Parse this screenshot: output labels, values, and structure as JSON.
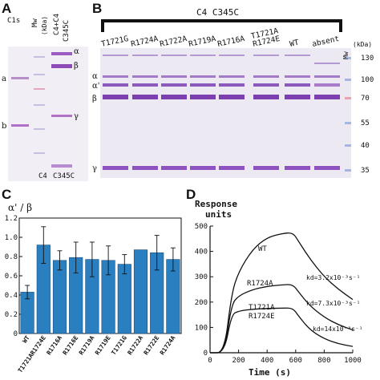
{
  "panel_a": {
    "letter": "A",
    "top_labels": [
      "C1s",
      "Mw (kDa)",
      "C4+C4 C345C"
    ],
    "lane_label_c1s": "C1s",
    "lane_label_mw": "Mw",
    "lane_label_kda": "(kDa)",
    "lane_label_c4c4": "C4+C4",
    "lane_label_c345c": "C345C",
    "band_a": "a",
    "band_b": "b",
    "band_alpha": "α",
    "band_beta": "β",
    "band_gamma": "γ",
    "bottom_c4": "C4",
    "bottom_c345c": "C345C"
  },
  "panel_b": {
    "letter": "B",
    "header": "C4 C345C",
    "lanes": [
      "T1721G",
      "R1724A",
      "R1722A",
      "R1719A",
      "R1716A",
      "T1721A R1724E",
      "WT",
      "absent"
    ],
    "mw_label": "Mw",
    "kda_label": "(kDa)",
    "band_alpha": "α",
    "band_alpha_prime": "α'",
    "band_beta": "β",
    "band_gamma": "γ",
    "markers": [
      "130",
      "100",
      "70",
      "55",
      "40",
      "35"
    ]
  },
  "panel_c": {
    "letter": "C",
    "ylabel": "α' / β"
  },
  "panel_d": {
    "letter": "D",
    "ylabel_line1": "Response",
    "ylabel_line2": "units",
    "xlabel": "Time (s)",
    "curve_wt": "WT",
    "curve_r1724a": "R1724A",
    "curve_t1721a_1": "T1721A",
    "curve_t1721a_2": "R1724E",
    "kd_wt": "kd=3.2x10⁻³s⁻¹",
    "kd_r1724a": "kd=7.3x10⁻³s⁻¹",
    "kd_t1721a": "kd=14x10⁻³s⁻¹"
  },
  "chart_data": [
    {
      "type": "bar",
      "panel": "C",
      "title": "",
      "ylabel": "α' / β",
      "xlabel": "",
      "categories": [
        "WT",
        "T1721A R1724E",
        "R1716A",
        "R1716E",
        "R1719A",
        "R1719E",
        "T1721G",
        "R1722A",
        "R1722E",
        "R1724A"
      ],
      "values": [
        0.43,
        0.92,
        0.76,
        0.79,
        0.77,
        0.76,
        0.72,
        0.87,
        0.84,
        0.77
      ],
      "errors": [
        0.07,
        0.19,
        0.1,
        0.16,
        0.18,
        0.15,
        0.1,
        0.0,
        0.18,
        0.12
      ],
      "ylim": [
        0,
        1.2
      ],
      "yticks": [
        "0",
        "0.2",
        "0.4",
        "0.6",
        "0.8",
        "1.0",
        "1.2"
      ],
      "bar_color": "#2a7fc1",
      "grid": false
    },
    {
      "type": "line",
      "panel": "D",
      "title": "",
      "ylabel": "Response units",
      "xlabel": "Time (s)",
      "xlim": [
        0,
        1000
      ],
      "ylim": [
        0,
        500
      ],
      "xticks": [
        "0",
        "200",
        "400",
        "600",
        "800",
        "1000"
      ],
      "yticks": [
        "0",
        "100",
        "200",
        "300",
        "400",
        "500"
      ],
      "series": [
        {
          "name": "WT",
          "x": [
            0,
            100,
            150,
            200,
            300,
            400,
            500,
            580,
            620,
            700,
            800,
            900,
            1000
          ],
          "values": [
            0,
            0,
            230,
            320,
            410,
            455,
            470,
            475,
            440,
            370,
            300,
            250,
            210
          ]
        },
        {
          "name": "R1724A",
          "x": [
            0,
            100,
            150,
            200,
            300,
            400,
            500,
            580,
            620,
            700,
            800,
            900,
            1000
          ],
          "values": [
            0,
            0,
            190,
            225,
            250,
            262,
            268,
            270,
            240,
            185,
            140,
            110,
            90
          ]
        },
        {
          "name": "T1721A R1724E",
          "x": [
            0,
            100,
            150,
            200,
            300,
            400,
            500,
            580,
            620,
            700,
            800,
            900,
            1000
          ],
          "values": [
            0,
            0,
            150,
            165,
            172,
            175,
            176,
            177,
            145,
            90,
            55,
            35,
            25
          ]
        }
      ]
    }
  ]
}
